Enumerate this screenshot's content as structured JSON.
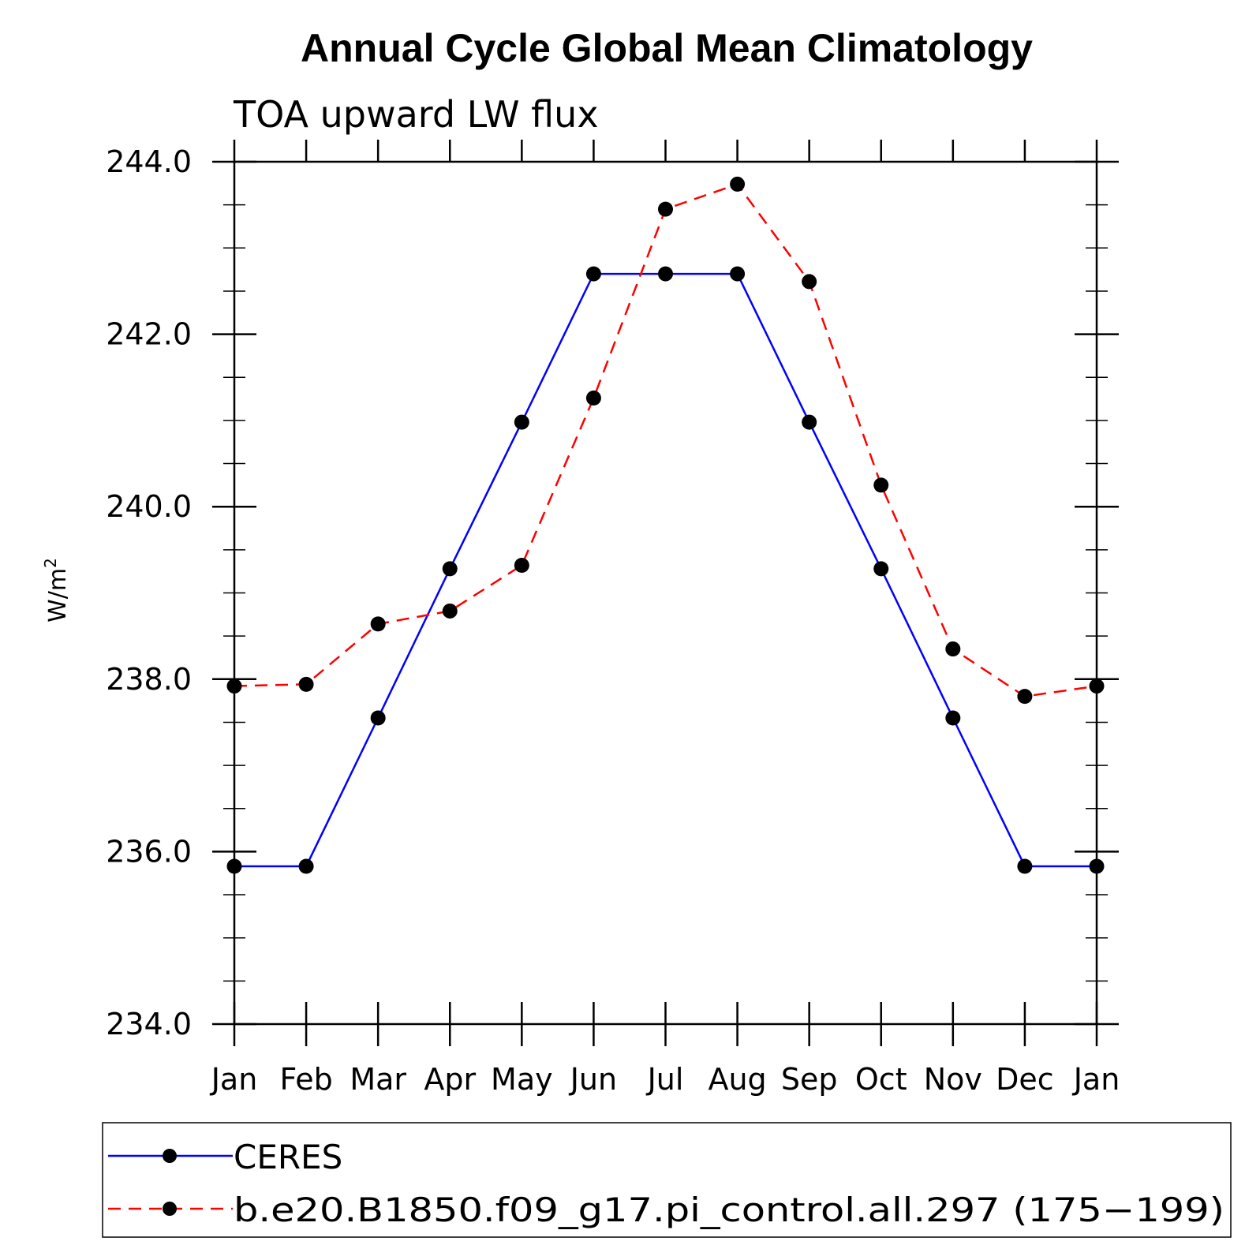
{
  "chart_data": {
    "type": "line",
    "title": "Annual Cycle Global Mean Climatology",
    "subtitle": "TOA upward LW flux",
    "ylabel_base": "W/m",
    "ylabel_sup": "2",
    "xlabel": "",
    "ylim": [
      234.0,
      244.0
    ],
    "yticks": [
      234.0,
      236.0,
      238.0,
      240.0,
      242.0,
      244.0
    ],
    "ytick_labels": [
      "234.0",
      "236.0",
      "238.0",
      "240.0",
      "242.0",
      "244.0"
    ],
    "categories": [
      "Jan",
      "Feb",
      "Mar",
      "Apr",
      "May",
      "Jun",
      "Jul",
      "Aug",
      "Sep",
      "Oct",
      "Nov",
      "Dec",
      "Jan"
    ],
    "series": [
      {
        "name": "CERES",
        "color": "#0000ff",
        "dash": "solid",
        "values": [
          235.83,
          235.83,
          237.55,
          239.28,
          240.98,
          242.7,
          242.7,
          242.7,
          240.98,
          239.28,
          237.55,
          235.83,
          235.83
        ]
      },
      {
        "name": "b.e20.B1850.f09_g17.pi_control.all.297 (175−199)",
        "color": "#ff0000",
        "dash": "dashed",
        "values": [
          237.92,
          237.94,
          238.64,
          238.79,
          239.32,
          241.26,
          243.45,
          243.74,
          242.61,
          240.25,
          238.35,
          237.8,
          237.92
        ]
      }
    ],
    "legend_position": "bottom"
  }
}
